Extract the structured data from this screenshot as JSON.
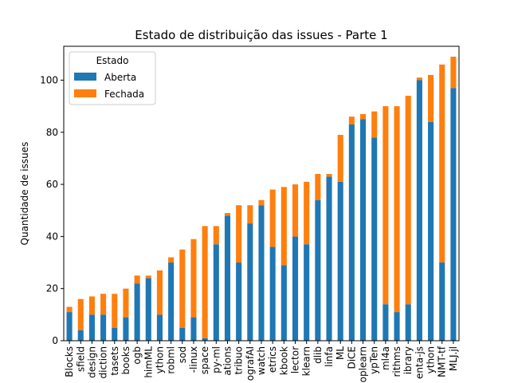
{
  "chart_data": {
    "type": "bar",
    "stacked": true,
    "title": "Estado de distribuição das issues - Parte 1",
    "xlabel": "",
    "ylabel": "Quantidade de issues",
    "ylim": [
      0,
      113
    ],
    "yticks": [
      0,
      20,
      40,
      60,
      80,
      100
    ],
    "grid": false,
    "legend": {
      "title": "Estado",
      "placement": "top-left"
    },
    "categories": [
      "Blocks",
      "sfield",
      "design",
      "diction",
      "tasets",
      "books",
      "ogb",
      "himML",
      "ython",
      "robml",
      "sod",
      "-linux",
      "space",
      "py-ml",
      "ations",
      "tribuo",
      "ografAI",
      "watch",
      "etrics",
      "kbook",
      "lector",
      "klearn",
      "dlib",
      "linfa",
      "ML",
      "DiCE",
      "oplearn",
      "ypTen",
      "ml4a",
      "rithms",
      "ibrary",
      "enta-js",
      "ython",
      "NMT-tf",
      "MLJ.jl"
    ],
    "series": [
      {
        "name": "Aberta",
        "color": "#1f77b4",
        "values": [
          11,
          4,
          10,
          10,
          5,
          9,
          22,
          24,
          10,
          30,
          5,
          9,
          1,
          37,
          48,
          30,
          45,
          52,
          36,
          29,
          40,
          37,
          54,
          63,
          61,
          83,
          85,
          78,
          14,
          11,
          14,
          100,
          84,
          30,
          97
        ]
      },
      {
        "name": "Fechada",
        "color": "#ff7f0e",
        "values": [
          2,
          12,
          7,
          8,
          13,
          11,
          3,
          1,
          17,
          2,
          30,
          30,
          43,
          7,
          1,
          22,
          7,
          2,
          22,
          30,
          20,
          24,
          10,
          1,
          18,
          3,
          2,
          10,
          76,
          79,
          80,
          1,
          18,
          76,
          12
        ]
      }
    ]
  }
}
